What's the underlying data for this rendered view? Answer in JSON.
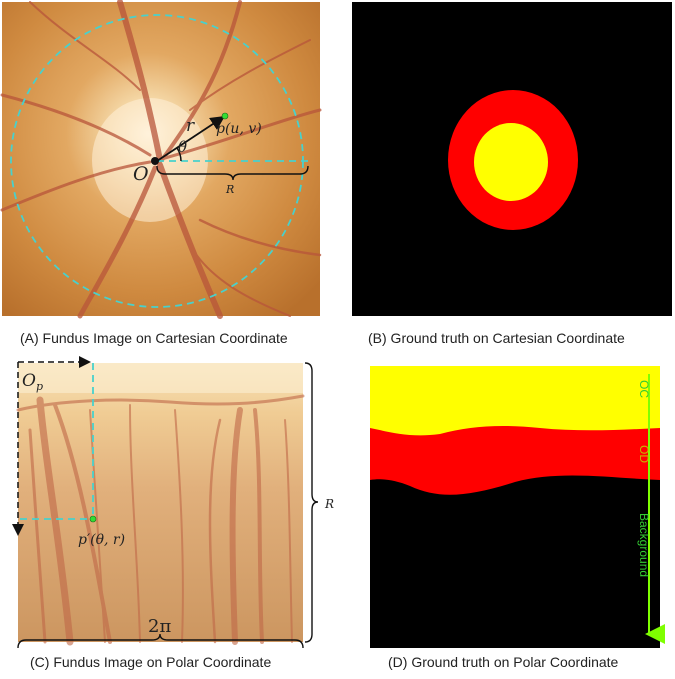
{
  "panels": {
    "a": {
      "caption": "(A) Fundus Image on Cartesian Coordinate",
      "labels": {
        "origin": "O",
        "radius_vec": "r",
        "angle": "θ",
        "point": "p(u, v)",
        "radius": "R"
      }
    },
    "b": {
      "caption": "(B) Ground truth on Cartesian Coordinate"
    },
    "c": {
      "caption": "(C) Fundus Image on Polar Coordinate",
      "labels": {
        "origin": "O",
        "origin_sub": "p",
        "point": "p′(θ, r)",
        "radius": "R",
        "angle_span": "2π"
      }
    },
    "d": {
      "caption": "(D) Ground truth on Polar Coordinate",
      "labels": {
        "oc": "OC",
        "od": "OD",
        "bg": "Background"
      }
    }
  },
  "colors": {
    "oc": "#ffff00",
    "od": "#ff0000",
    "background": "#000000",
    "guide": "#48d1cc",
    "arrow_green": "#7fff00",
    "point": "#33dd33"
  }
}
